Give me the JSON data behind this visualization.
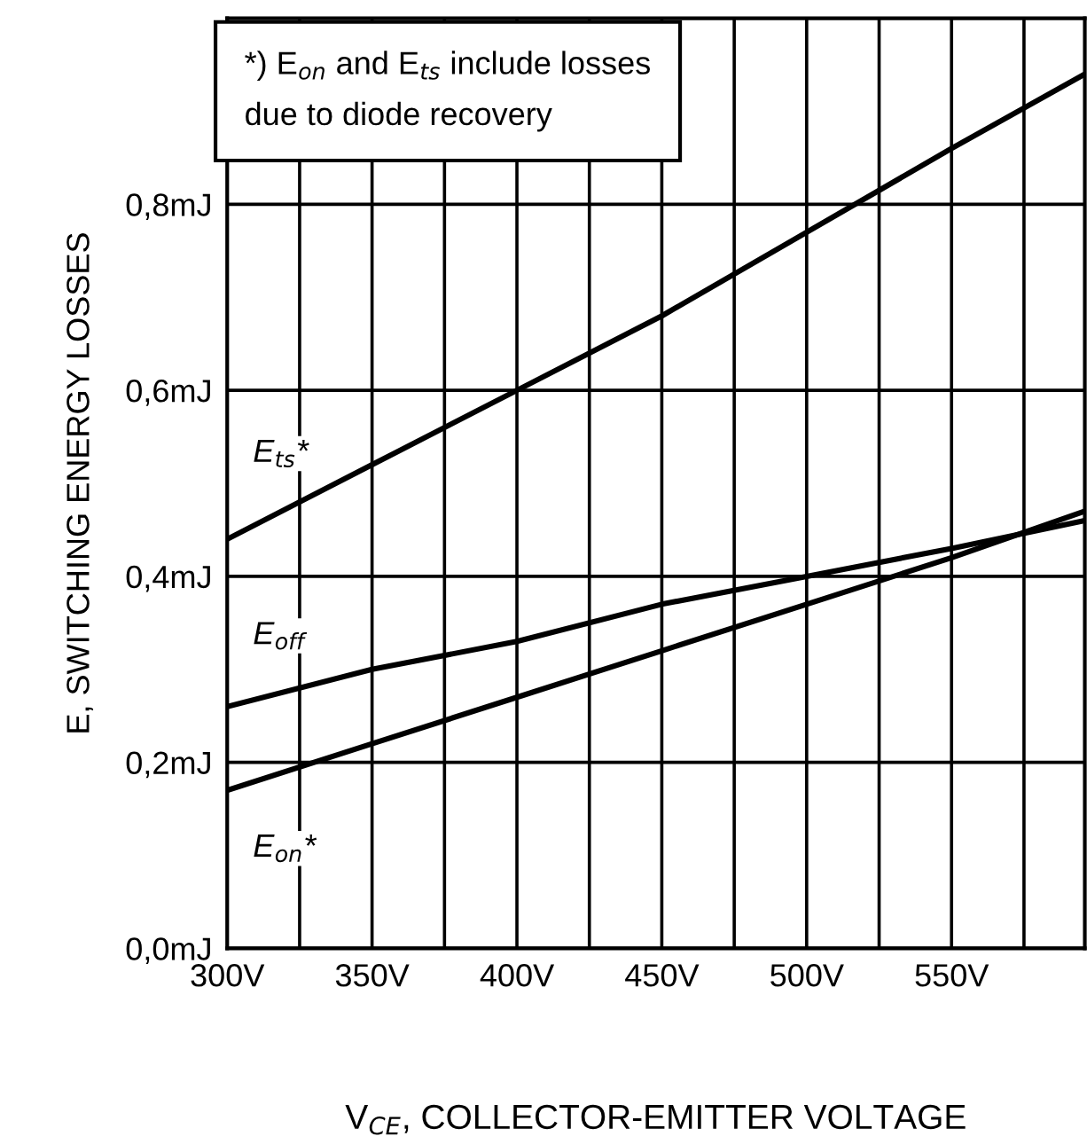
{
  "chart_data": {
    "type": "line",
    "xlabel": "V$_{CE}$, COLLECTOR-EMITTER VOLTAGE",
    "ylabel": "E, SWITCHING ENERGY LOSSES",
    "x": [
      300,
      350,
      400,
      450,
      500,
      550,
      596
    ],
    "series": [
      {
        "name": "E$_{ts}$*",
        "color": "#000000",
        "values": [
          0.44,
          0.52,
          0.6,
          0.68,
          0.77,
          0.86,
          0.94
        ]
      },
      {
        "name": "E$_{off}$",
        "color": "#000000",
        "values": [
          0.26,
          0.3,
          0.33,
          0.37,
          0.4,
          0.43,
          0.46
        ]
      },
      {
        "name": "E$_{on}$*",
        "color": "#000000",
        "values": [
          0.17,
          0.22,
          0.27,
          0.32,
          0.37,
          0.42,
          0.47
        ]
      }
    ],
    "xlim": [
      300,
      596
    ],
    "ylim": [
      0,
      1.0
    ],
    "xticks": [
      {
        "value": 300,
        "label": "300V"
      },
      {
        "value": 325,
        "label": null
      },
      {
        "value": 350,
        "label": "350V"
      },
      {
        "value": 375,
        "label": null
      },
      {
        "value": 400,
        "label": "400V"
      },
      {
        "value": 425,
        "label": null
      },
      {
        "value": 450,
        "label": "450V"
      },
      {
        "value": 475,
        "label": null
      },
      {
        "value": 500,
        "label": "500V"
      },
      {
        "value": 525,
        "label": null
      },
      {
        "value": 550,
        "label": "550V"
      },
      {
        "value": 575,
        "label": null
      }
    ],
    "yticks": [
      {
        "value": 0,
        "label": "0,0mJ"
      },
      {
        "value": 0.2,
        "label": "0,2mJ"
      },
      {
        "value": 0.4,
        "label": "0,4mJ"
      },
      {
        "value": 0.6,
        "label": "0,6mJ"
      },
      {
        "value": 0.8,
        "label": "0,8mJ"
      }
    ],
    "grid": true,
    "marker": "none",
    "line_style": "solid",
    "annotations": [
      "*) E$_{on}$ and E$_{ts}$ include losses\ndue to diode recovery"
    ]
  }
}
